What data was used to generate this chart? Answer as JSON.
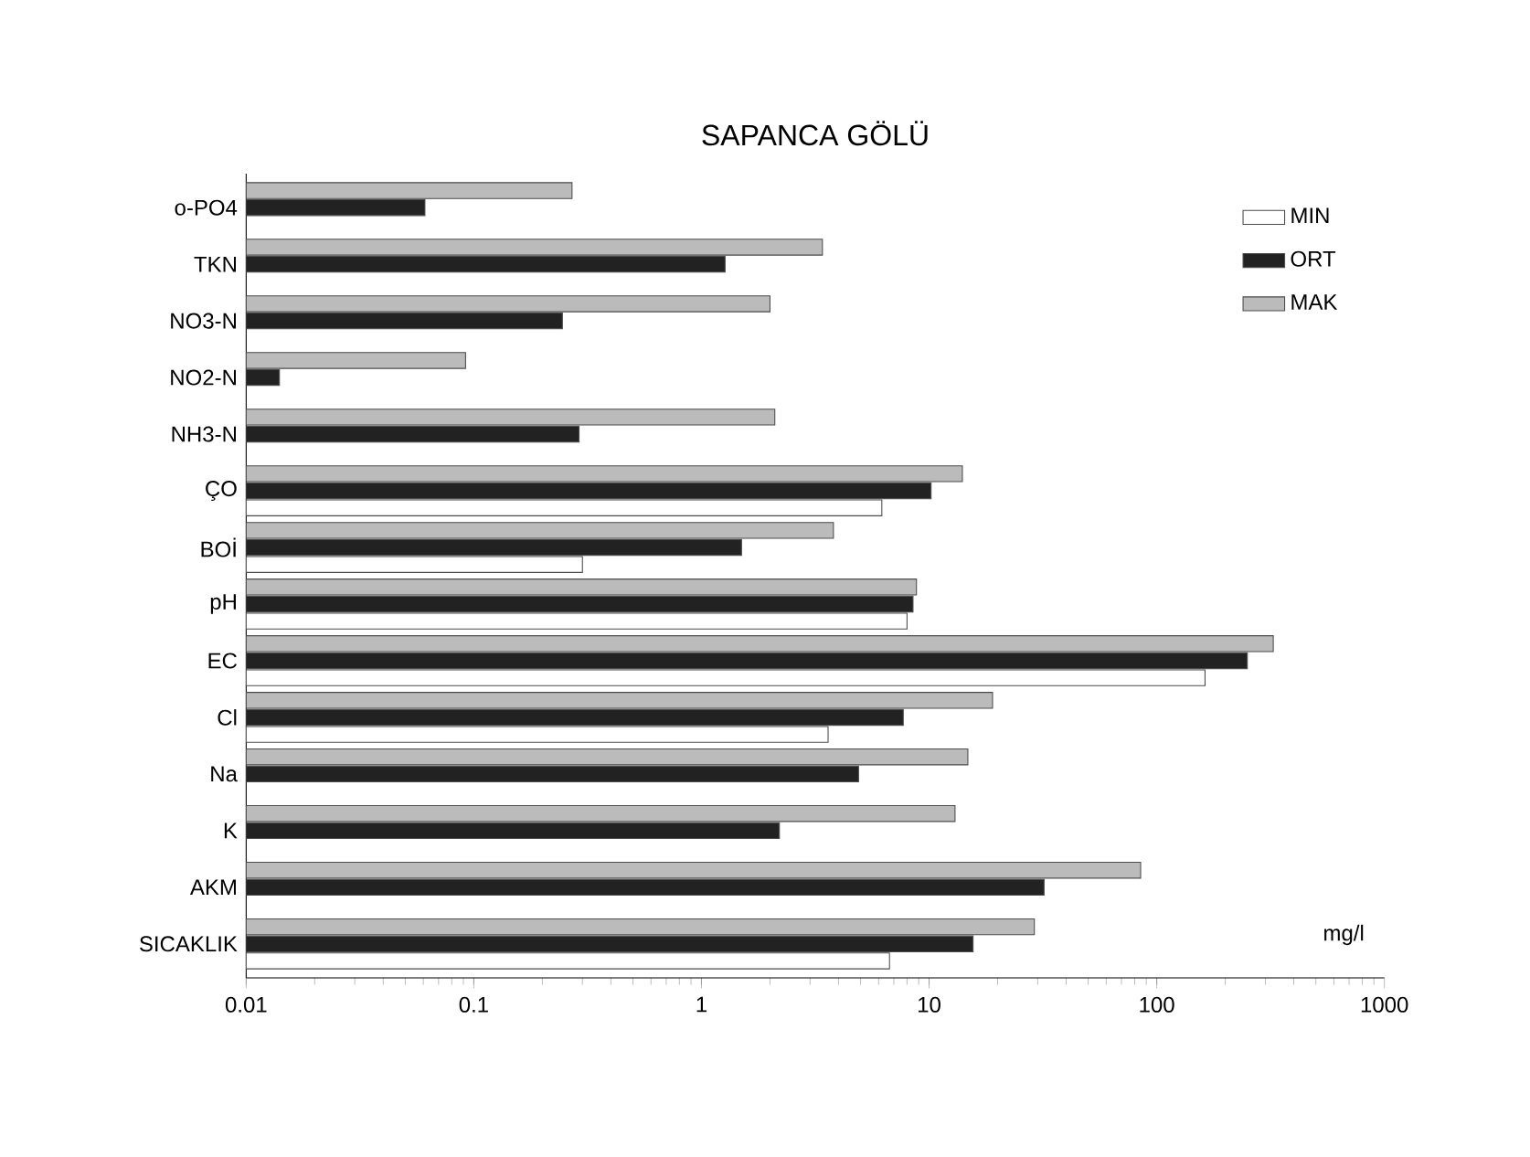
{
  "chart_data": {
    "type": "bar",
    "orientation": "horizontal",
    "title": "SAPANCA GÖLÜ",
    "xlabel": "mg/l",
    "log": "x",
    "legend": "top right",
    "categories": [
      "o-PO4",
      "TKN",
      "NO3-N",
      "NO2-N",
      "NH3-N",
      "ÇO",
      "BOİ",
      "pH",
      "EC",
      "Cl",
      "Na",
      "K",
      "AKM",
      "SICAKLIK"
    ],
    "series": [
      {
        "name": "MIN",
        "color": "#ffffff",
        "values": [
          null,
          null,
          null,
          null,
          null,
          6.2,
          0.3,
          8.0,
          163,
          3.6,
          null,
          null,
          null,
          6.7
        ]
      },
      {
        "name": "ORT",
        "color": "#222222",
        "values": [
          0.061,
          1.27,
          0.245,
          0.014,
          0.29,
          10.2,
          1.5,
          8.5,
          250,
          7.7,
          4.9,
          2.2,
          32,
          15.6
        ]
      },
      {
        "name": "MAK",
        "color": "#bbbbbb",
        "values": [
          0.27,
          3.4,
          2.0,
          0.092,
          2.1,
          14,
          3.8,
          8.8,
          325,
          19,
          14.8,
          13,
          85,
          29
        ]
      }
    ],
    "xlim": [
      0.01,
      1000
    ],
    "xticks": [
      0.01,
      0.1,
      1,
      10,
      100,
      1000
    ]
  }
}
